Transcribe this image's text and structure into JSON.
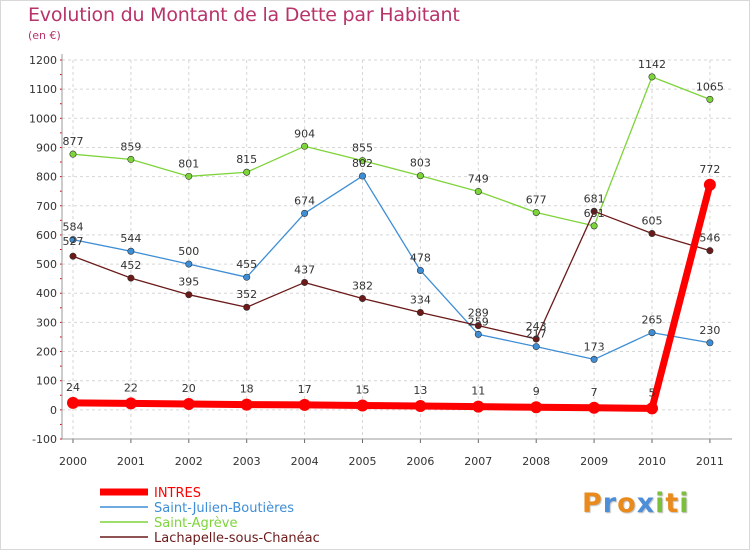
{
  "header": {
    "title": "Evolution du Montant de la Dette par Habitant",
    "subtitle": "(en €)"
  },
  "logo": {
    "letters": [
      "P",
      "r",
      "o",
      "x",
      "i",
      "t",
      "i"
    ],
    "colors": [
      "#e98a1d",
      "#4d8ed8",
      "#e98a1d",
      "#4d8ed8",
      "#7cbf3a",
      "#e98a1d",
      "#7cbf3a"
    ]
  },
  "chart_data": {
    "type": "line",
    "title": "Evolution du Montant de la Dette par Habitant",
    "ylabel": "(en €)",
    "xlabel": "",
    "x": [
      "2000",
      "2001",
      "2002",
      "2003",
      "2004",
      "2005",
      "2006",
      "2007",
      "2008",
      "2009",
      "2010",
      "2011"
    ],
    "ylim": [
      -100,
      1200
    ],
    "yticks": [
      "-100",
      "0",
      "100",
      "200",
      "300",
      "400",
      "500",
      "600",
      "700",
      "800",
      "900",
      "1000",
      "1100",
      "1200"
    ],
    "grid": true,
    "legend_position": "bottom-left",
    "series": [
      {
        "name": "INTRES",
        "color": "#ff0000",
        "values": [
          24,
          22,
          20,
          18,
          17,
          15,
          13,
          11,
          9,
          7,
          5,
          772
        ],
        "labels": [
          "24",
          "22",
          "20",
          "18",
          "17",
          "15",
          "13",
          "11",
          "9",
          "7",
          "5",
          "772"
        ]
      },
      {
        "name": "Saint-Julien-Boutières",
        "color": "#3e8ed6",
        "values": [
          584,
          544,
          500,
          455,
          674,
          802,
          478,
          259,
          217,
          173,
          265,
          230
        ],
        "labels": [
          "584",
          "544",
          "500",
          "455",
          "674",
          "802",
          "478",
          "259",
          "217",
          "173",
          "265",
          "230"
        ]
      },
      {
        "name": "Saint-Agrève",
        "color": "#7ed43b",
        "values": [
          877,
          859,
          801,
          815,
          904,
          855,
          803,
          749,
          677,
          631,
          1142,
          1065
        ],
        "labels": [
          "877",
          "859",
          "801",
          "815",
          "904",
          "855",
          "803",
          "749",
          "677",
          "631",
          "1142",
          "1065"
        ]
      },
      {
        "name": "Lachapelle-sous-Chanéac",
        "color": "#6b1a1a",
        "values": [
          527,
          452,
          395,
          352,
          437,
          382,
          334,
          289,
          243,
          681,
          605,
          546
        ],
        "labels": [
          "527",
          "452",
          "395",
          "352",
          "437",
          "382",
          "334",
          "289",
          "243",
          "681",
          "605",
          "546"
        ]
      }
    ]
  }
}
